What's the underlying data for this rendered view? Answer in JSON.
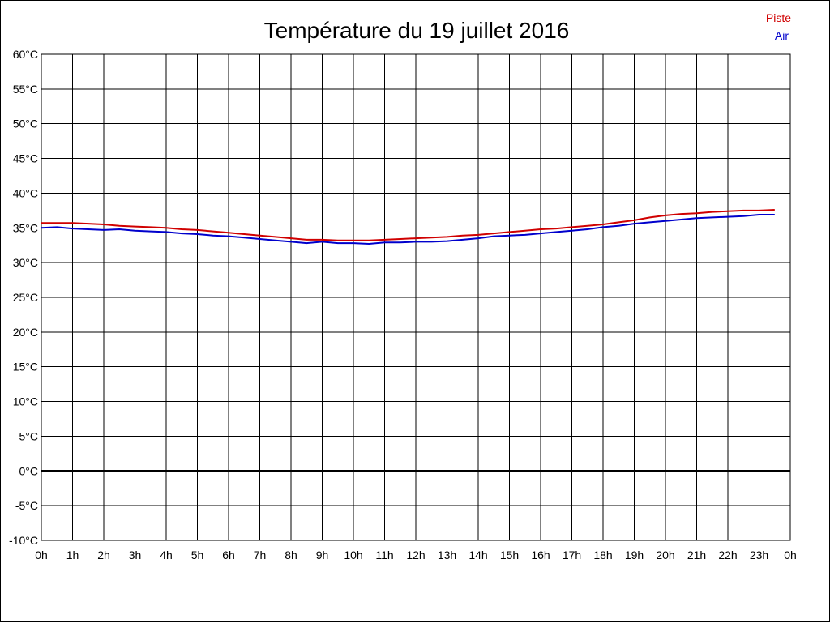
{
  "chart_data": {
    "type": "line",
    "title": "Température du 19 juillet 2016",
    "xlabel": "",
    "ylabel": "",
    "ylim": [
      -10,
      60
    ],
    "xlim": [
      0,
      24
    ],
    "grid": true,
    "legend_position": "top-right",
    "x_tick_labels": [
      "0h",
      "1h",
      "2h",
      "3h",
      "4h",
      "5h",
      "6h",
      "7h",
      "8h",
      "9h",
      "10h",
      "11h",
      "12h",
      "13h",
      "14h",
      "15h",
      "16h",
      "17h",
      "18h",
      "19h",
      "20h",
      "21h",
      "22h",
      "23h",
      "0h"
    ],
    "y_tick_labels": [
      "60°C",
      "55°C",
      "50°C",
      "45°C",
      "40°C",
      "35°C",
      "30°C",
      "25°C",
      "20°C",
      "15°C",
      "10°C",
      "5°C",
      "0°C",
      "-5°C",
      "-10°C"
    ],
    "y_tick_values": [
      60,
      55,
      50,
      45,
      40,
      35,
      30,
      25,
      20,
      15,
      10,
      5,
      0,
      -5,
      -10
    ],
    "series": [
      {
        "name": "Piste",
        "color": "#d00000",
        "x": [
          0,
          0.5,
          1,
          1.5,
          2,
          2.5,
          3,
          3.5,
          4,
          4.5,
          5,
          5.5,
          6,
          6.5,
          7,
          7.5,
          8,
          8.5,
          9,
          9.5,
          10,
          10.5,
          11,
          11.5,
          12,
          12.5,
          13,
          13.5,
          14,
          14.5,
          15,
          15.5,
          16,
          16.5,
          17,
          17.5,
          18,
          18.5,
          19,
          19.5,
          20,
          20.5,
          21,
          21.5,
          22,
          22.5,
          23,
          23.5
        ],
        "values": [
          35.7,
          35.7,
          35.7,
          35.6,
          35.5,
          35.3,
          35.2,
          35.1,
          35.0,
          34.8,
          34.7,
          34.5,
          34.3,
          34.1,
          33.9,
          33.7,
          33.5,
          33.3,
          33.3,
          33.2,
          33.2,
          33.2,
          33.3,
          33.4,
          33.5,
          33.6,
          33.7,
          33.9,
          34.0,
          34.2,
          34.4,
          34.6,
          34.8,
          34.9,
          35.1,
          35.3,
          35.5,
          35.8,
          36.1,
          36.5,
          36.8,
          37.0,
          37.1,
          37.3,
          37.4,
          37.5,
          37.5,
          37.6
        ]
      },
      {
        "name": "Air",
        "color": "#0000cc",
        "x": [
          0,
          0.5,
          1,
          1.5,
          2,
          2.5,
          3,
          3.5,
          4,
          4.5,
          5,
          5.5,
          6,
          6.5,
          7,
          7.5,
          8,
          8.5,
          9,
          9.5,
          10,
          10.5,
          11,
          11.5,
          12,
          12.5,
          13,
          13.5,
          14,
          14.5,
          15,
          15.5,
          16,
          16.5,
          17,
          17.5,
          18,
          18.5,
          19,
          19.5,
          20,
          20.5,
          21,
          21.5,
          22,
          22.5,
          23,
          23.5
        ],
        "values": [
          35.0,
          35.1,
          34.9,
          34.8,
          34.7,
          34.8,
          34.6,
          34.5,
          34.4,
          34.2,
          34.1,
          33.9,
          33.8,
          33.6,
          33.4,
          33.2,
          33.0,
          32.8,
          33.0,
          32.8,
          32.8,
          32.7,
          32.9,
          32.9,
          33.0,
          33.0,
          33.1,
          33.3,
          33.5,
          33.8,
          33.9,
          34.0,
          34.2,
          34.4,
          34.6,
          34.8,
          35.1,
          35.3,
          35.6,
          35.8,
          36.0,
          36.2,
          36.4,
          36.5,
          36.6,
          36.7,
          36.9,
          36.9
        ]
      }
    ]
  }
}
